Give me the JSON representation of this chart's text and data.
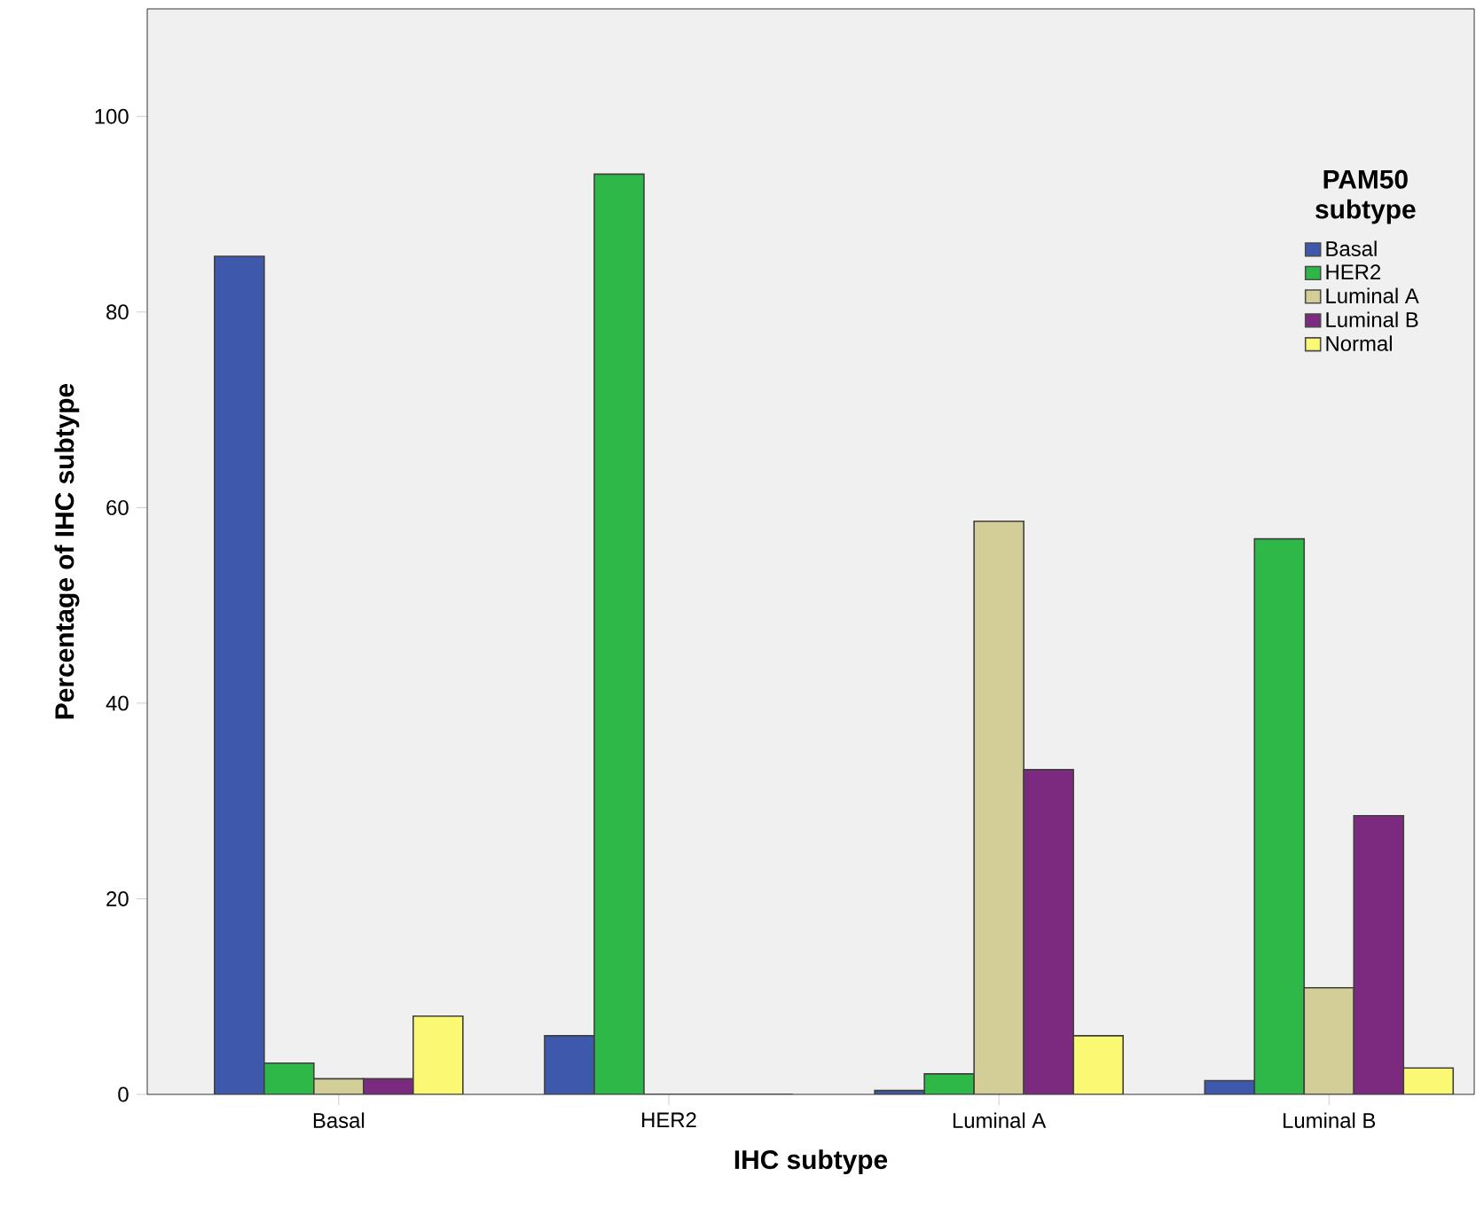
{
  "chart_data": {
    "type": "bar",
    "xlabel": "IHC subtype",
    "ylabel": "Percentage of IHC subtype",
    "legend_title": "PAM50 subtype",
    "legend": "top right",
    "grid": false,
    "categories": [
      "Basal",
      "HER2",
      "Luminal A",
      "Luminal B"
    ],
    "ylim": [
      0,
      111
    ],
    "yticks": [
      0,
      20,
      40,
      60,
      80,
      100
    ],
    "series": [
      {
        "name": "Basal",
        "color": "#3e58ac",
        "values": [
          85.7,
          6.0,
          0.4,
          1.4
        ]
      },
      {
        "name": "HER2",
        "color": "#2eb848",
        "values": [
          3.2,
          94.1,
          2.1,
          56.8
        ]
      },
      {
        "name": "Luminal A",
        "color": "#d3ce97",
        "values": [
          1.6,
          0,
          58.6,
          10.9
        ]
      },
      {
        "name": "Luminal B",
        "color": "#7b2a7f",
        "values": [
          1.6,
          0,
          33.2,
          28.5
        ]
      },
      {
        "name": "Normal",
        "color": "#fbf873",
        "values": [
          8.0,
          0,
          6.0,
          2.7
        ]
      }
    ]
  }
}
